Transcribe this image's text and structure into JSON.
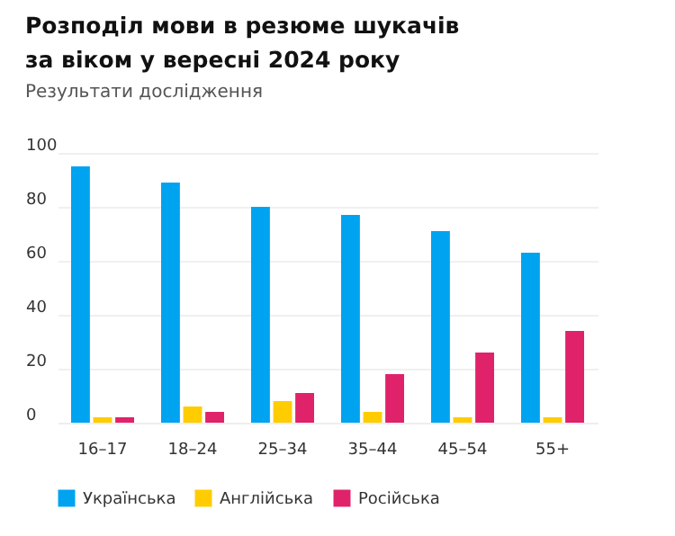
{
  "chart_data": {
    "type": "bar",
    "title": [
      "Розподіл мови в резюме шукачів",
      "за віком у вересні 2024 року"
    ],
    "subtitle": "Результати дослідження",
    "categories": [
      "16–17",
      "18–24",
      "25–34",
      "35–44",
      "45–54",
      "55+"
    ],
    "series": [
      {
        "name": "Українська",
        "color": "#00a3f0",
        "values": [
          95,
          89,
          80,
          77,
          71,
          63
        ]
      },
      {
        "name": "Англійська",
        "color": "#ffcc00",
        "values": [
          2,
          6,
          8,
          4,
          2,
          2
        ]
      },
      {
        "name": "Російська",
        "color": "#e0226a",
        "values": [
          2,
          4,
          11,
          18,
          26,
          34
        ]
      }
    ],
    "ylim": [
      0,
      100
    ],
    "yticks": [
      0,
      20,
      40,
      60,
      80,
      100
    ],
    "grid": "y",
    "legend": "bottom left"
  }
}
